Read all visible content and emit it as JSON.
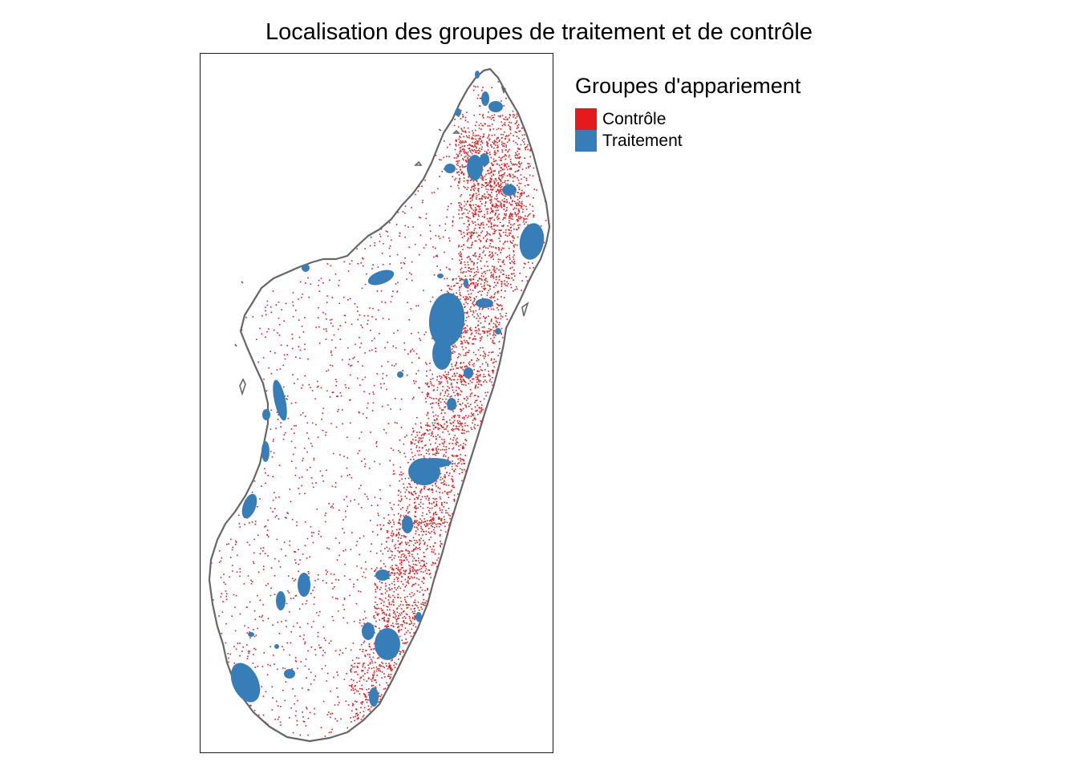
{
  "title": "Localisation des groupes de traitement et de contrôle",
  "legend": {
    "title": "Groupes d'appariement",
    "items": [
      {
        "label": "Contrôle",
        "color": "#e41a1c"
      },
      {
        "label": "Traitement",
        "color": "#377eb8"
      }
    ]
  },
  "map": {
    "region_outline_color": "#666666",
    "panel_border_color": "#1a1a1a"
  }
}
